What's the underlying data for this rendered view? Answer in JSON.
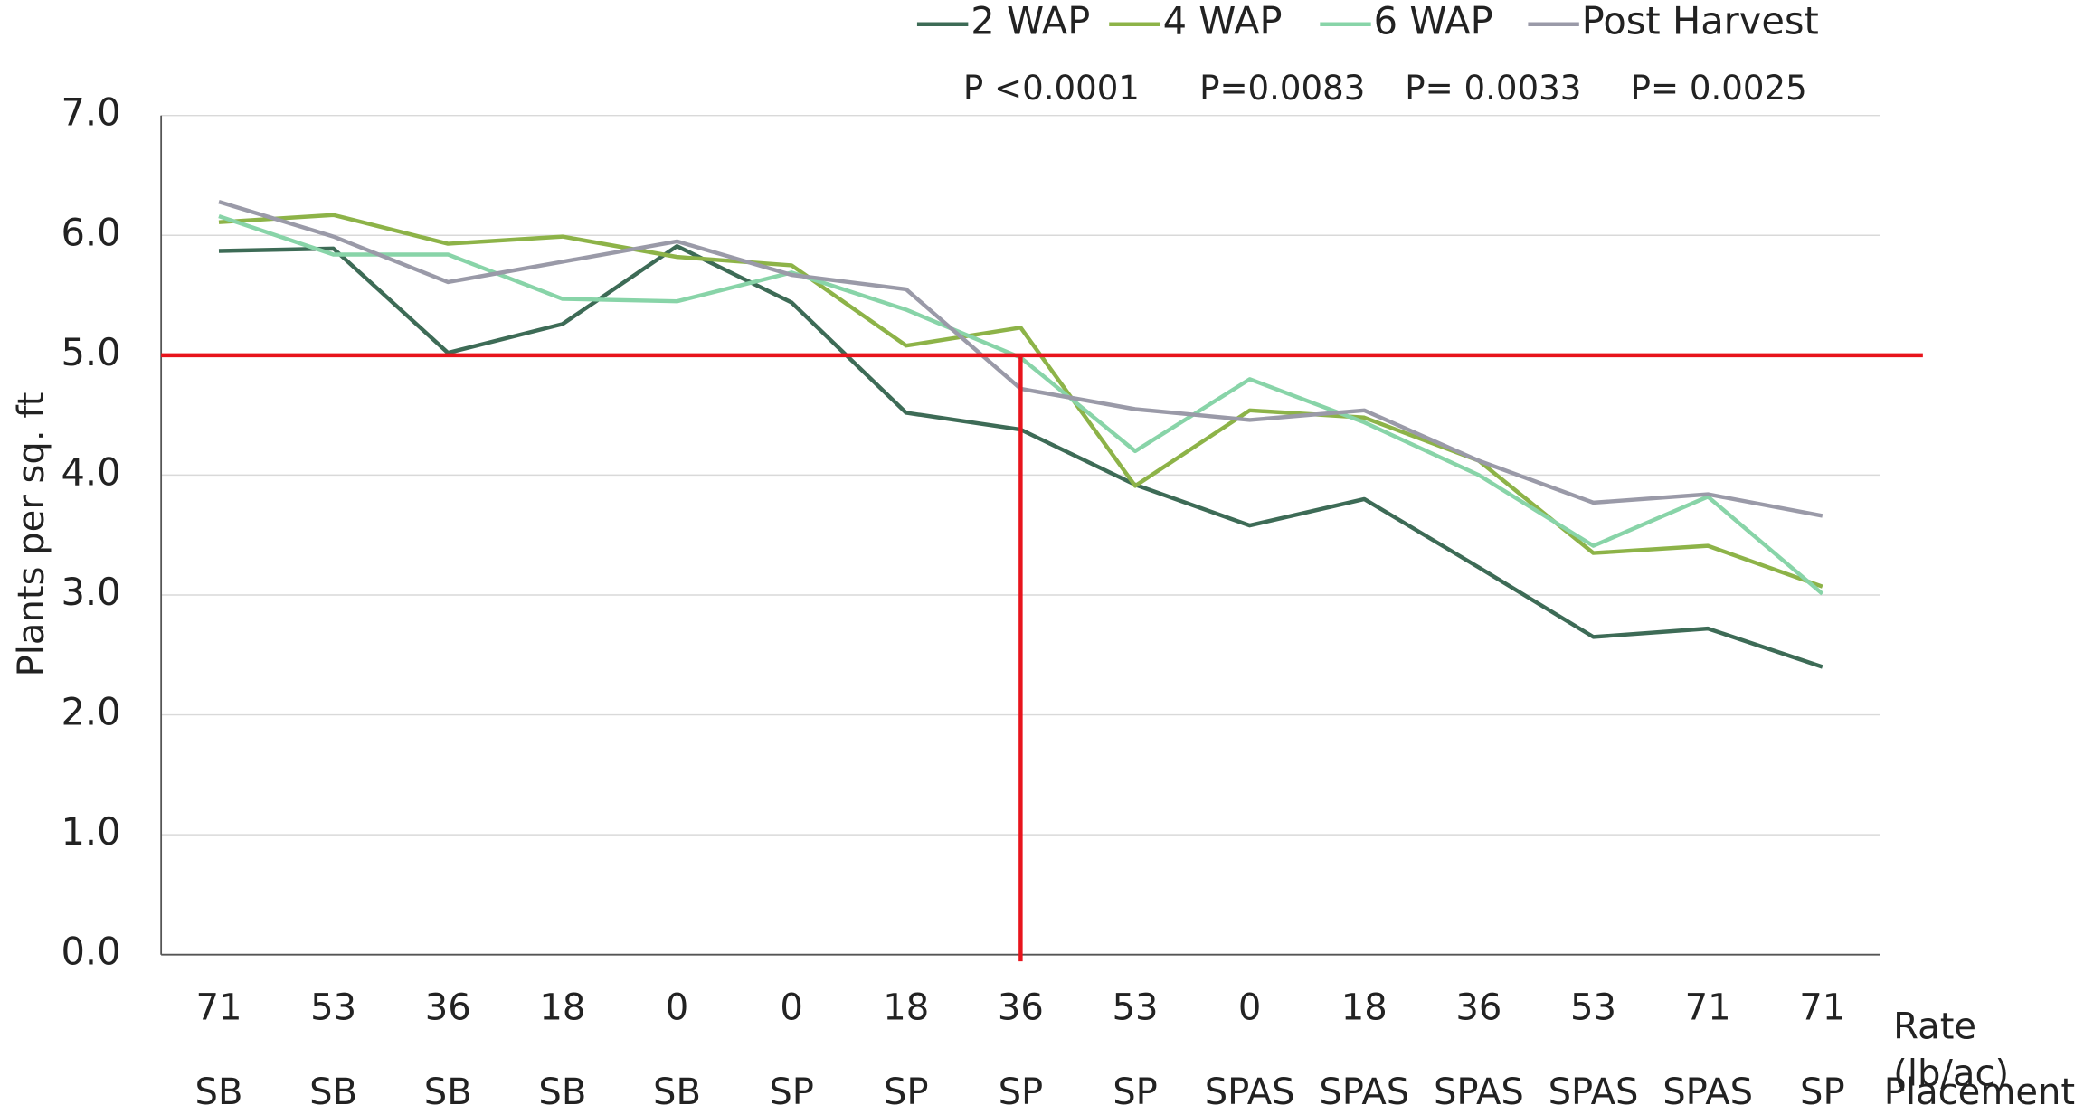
{
  "chart_data": {
    "type": "line",
    "y_label": "Plants per sq. ft",
    "x_label": "Rate (lb/ac)",
    "x2_label": "Placement",
    "categories": [
      "71",
      "53",
      "36",
      "18",
      "0",
      "0",
      "18",
      "36",
      "53",
      "0",
      "18",
      "36",
      "53",
      "71",
      "71"
    ],
    "placements": [
      "SB",
      "SB",
      "SB",
      "SB",
      "SB",
      "SP",
      "SP",
      "SP",
      "SP",
      "SPAS",
      "SPAS",
      "SPAS",
      "SPAS",
      "SPAS",
      "SP"
    ],
    "series": [
      {
        "name": "2 WAP",
        "color": "#3d6b56",
        "p_value": "P <0.0001",
        "values": [
          5.87,
          5.89,
          5.02,
          5.26,
          5.91,
          5.44,
          4.52,
          4.38,
          3.92,
          3.58,
          3.8,
          3.23,
          2.65,
          2.72,
          2.4
        ]
      },
      {
        "name": "4 WAP",
        "color": "#8db348",
        "p_value": "P=0.0083",
        "values": [
          6.11,
          6.17,
          5.93,
          5.99,
          5.82,
          5.75,
          5.08,
          5.23,
          3.91,
          4.54,
          4.48,
          4.12,
          3.35,
          3.41,
          3.07
        ]
      },
      {
        "name": "6 WAP",
        "color": "#88d4a8",
        "p_value": "P= 0.0033",
        "values": [
          6.16,
          5.84,
          5.84,
          5.47,
          5.45,
          5.69,
          5.38,
          4.98,
          4.2,
          4.8,
          4.44,
          4.0,
          3.41,
          3.82,
          3.01
        ]
      },
      {
        "name": "Post Harvest",
        "color": "#9a9aa8",
        "p_value": "P= 0.0025",
        "values": [
          6.28,
          5.99,
          5.61,
          5.78,
          5.95,
          5.67,
          5.55,
          4.72,
          4.55,
          4.46,
          4.54,
          4.12,
          3.77,
          3.84,
          3.66
        ]
      }
    ],
    "ylim": [
      0,
      7
    ],
    "yticks": [
      {
        "value": 0,
        "label": "0.0"
      },
      {
        "value": 1,
        "label": "1.0"
      },
      {
        "value": 2,
        "label": "2.0"
      },
      {
        "value": 3,
        "label": "3.0"
      },
      {
        "value": 4,
        "label": "4.0"
      },
      {
        "value": 5,
        "label": "5.0"
      },
      {
        "value": 6,
        "label": "6.0"
      },
      {
        "value": 7,
        "label": "7.0"
      }
    ],
    "grid": true,
    "reference_line_y": 5,
    "reference_line_category": 7,
    "reference_color": "#e8141c",
    "legend": "top"
  }
}
